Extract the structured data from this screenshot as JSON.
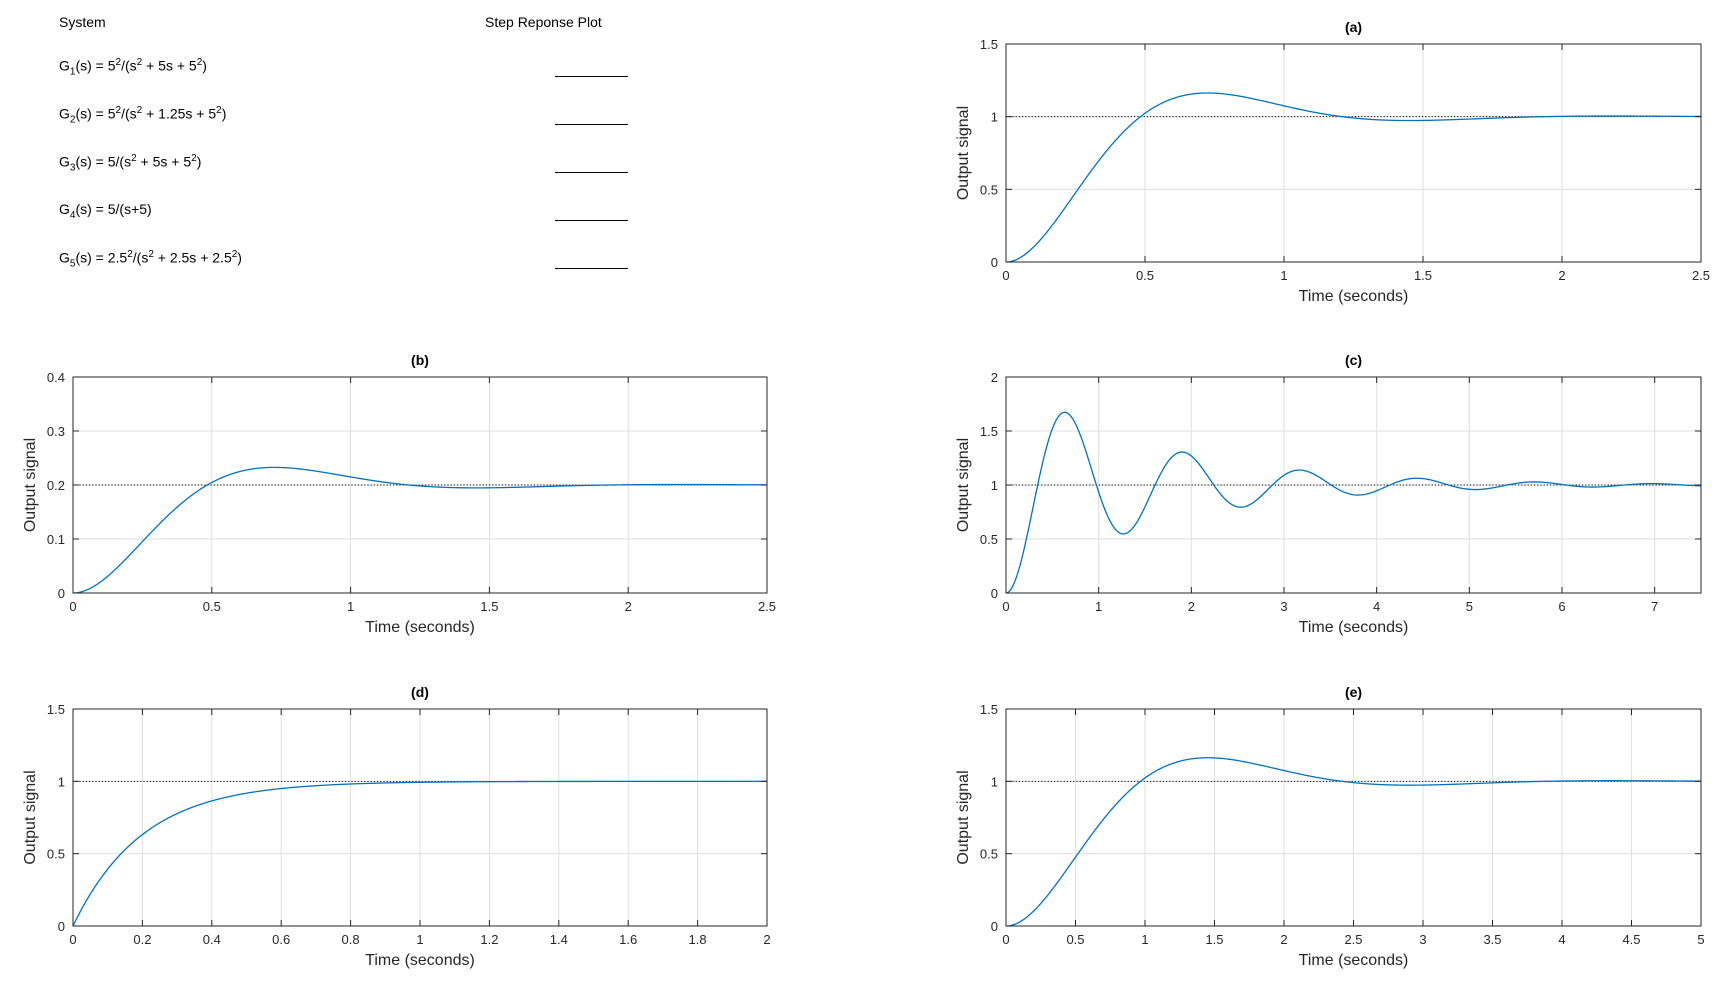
{
  "table": {
    "header_system": "System",
    "header_plot": "Step Reponse Plot",
    "rows": [
      {
        "g": "G",
        "sub": "1",
        "a": "(s) = 5",
        "b": "2",
        "c": "/(s",
        "d": "2",
        "e": " + 5s + 5",
        "f": "2",
        "g2": ")"
      },
      {
        "g": "G",
        "sub": "2",
        "a": "(s) = 5",
        "b": "2",
        "c": "/(s",
        "d": "2",
        "e": " + 1.25s + 5",
        "f": "2",
        "g2": ")"
      },
      {
        "g": "G",
        "sub": "3",
        "a": "(s) = 5/(s",
        "b": "",
        "c": "",
        "d": "2",
        "e": " + 5s + 5",
        "f": "2",
        "g2": ")"
      },
      {
        "g": "G",
        "sub": "4",
        "a": "(s) = 5/(s+5)",
        "b": "",
        "c": "",
        "d": "",
        "e": "",
        "f": "",
        "g2": ""
      },
      {
        "g": "G",
        "sub": "5",
        "a": "(s) = 2.5",
        "b": "2",
        "c": "/(s",
        "d": "2",
        "e": " + 2.5s + 2.5",
        "f": "2",
        "g2": ")"
      }
    ],
    "blank_text": "_________"
  },
  "colors": {
    "line": "#0072BD",
    "grid": "#dfdfdf",
    "axis": "#262626"
  },
  "chart_data": [
    {
      "id": "a",
      "type": "line",
      "title": "(a)",
      "xlabel": "Time (seconds)",
      "ylabel": "Output signal",
      "xlim": [
        0,
        2.5
      ],
      "ylim": [
        0,
        1.5
      ],
      "xticks": [
        0,
        0.5,
        1,
        1.5,
        2,
        2.5
      ],
      "yticks": [
        0,
        0.5,
        1,
        1.5
      ],
      "system": {
        "k": 25,
        "c1": 5,
        "c0": 25
      },
      "final_value": 1,
      "grid": true
    },
    {
      "id": "b",
      "type": "line",
      "title": "(b)",
      "xlabel": "Time (seconds)",
      "ylabel": "Output signal",
      "xlim": [
        0,
        2.5
      ],
      "ylim": [
        0,
        0.4
      ],
      "xticks": [
        0,
        0.5,
        1,
        1.5,
        2,
        2.5
      ],
      "yticks": [
        0,
        0.1,
        0.2,
        0.3,
        0.4
      ],
      "system": {
        "k": 5,
        "c1": 5,
        "c0": 25
      },
      "final_value": 0.2,
      "grid": true
    },
    {
      "id": "c",
      "type": "line",
      "title": "(c)",
      "xlabel": "Time (seconds)",
      "ylabel": "Output signal",
      "xlim": [
        0,
        7.5
      ],
      "ylim": [
        0,
        2
      ],
      "xticks": [
        0,
        1,
        2,
        3,
        4,
        5,
        6,
        7
      ],
      "yticks": [
        0,
        0.5,
        1,
        1.5,
        2
      ],
      "system": {
        "k": 25,
        "c1": 1.25,
        "c0": 25
      },
      "final_value": 1,
      "grid": true
    },
    {
      "id": "d",
      "type": "line",
      "title": "(d)",
      "xlabel": "Time (seconds)",
      "ylabel": "Output signal",
      "xlim": [
        0,
        2
      ],
      "ylim": [
        0,
        1.5
      ],
      "xticks": [
        0,
        0.2,
        0.4,
        0.6,
        0.8,
        1,
        1.2,
        1.4,
        1.6,
        1.8,
        2
      ],
      "yticks": [
        0,
        0.5,
        1,
        1.5
      ],
      "system": {
        "first_order": true,
        "k": 5,
        "a": 5
      },
      "final_value": 1,
      "grid": true
    },
    {
      "id": "e",
      "type": "line",
      "title": "(e)",
      "xlabel": "Time (seconds)",
      "ylabel": "Output signal",
      "xlim": [
        0,
        5
      ],
      "ylim": [
        0,
        1.5
      ],
      "xticks": [
        0,
        0.5,
        1,
        1.5,
        2,
        2.5,
        3,
        3.5,
        4,
        4.5,
        5
      ],
      "yticks": [
        0,
        0.5,
        1,
        1.5
      ],
      "system": {
        "k": 6.25,
        "c1": 2.5,
        "c0": 6.25
      },
      "final_value": 1,
      "grid": true
    }
  ]
}
